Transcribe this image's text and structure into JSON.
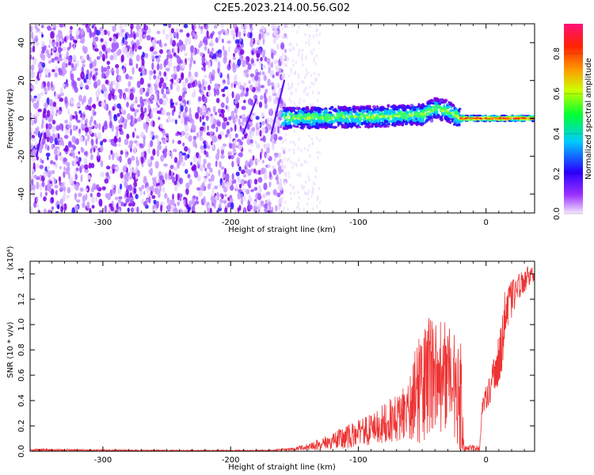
{
  "title": "C2E5.2023.214.00.56.G02",
  "colors": {
    "spectrogram_low": "#7a00e6",
    "spectrogram_mid": "#00e5ff",
    "spectrogram_high": "#ff3300",
    "snr_line": "#ee3333"
  },
  "chart_data": [
    {
      "type": "heatmap",
      "name": "spectrogram",
      "xlabel": "Height of straight line (km)",
      "ylabel": "Frequency (Hz)",
      "xlim": [
        -357,
        38
      ],
      "ylim": [
        -50,
        50
      ],
      "xticks": [
        -300,
        -200,
        -100,
        0
      ],
      "xtick_labels": [
        "-300",
        "-200",
        "-100",
        "0"
      ],
      "yticks": [
        -40,
        -20,
        0,
        20,
        40
      ],
      "ytick_labels": [
        "-40",
        "-20",
        "0",
        "20",
        "40"
      ],
      "colorbar": {
        "label": "Normalized spectral amplitude",
        "range": [
          0,
          0.95
        ],
        "ticks": [
          0.0,
          0.2,
          0.4,
          0.6,
          0.8
        ],
        "tick_labels": [
          "0.0",
          "0.2",
          "0.4",
          "0.6",
          "0.8"
        ]
      },
      "regions": [
        {
          "x": [
            -357,
            -160
          ],
          "freq_band": [
            -50,
            50
          ],
          "amplitude": 0.15,
          "description": "broadband noise"
        },
        {
          "x": [
            -160,
            -20
          ],
          "freq_band": [
            -4,
            5
          ],
          "amplitude": 0.4
        },
        {
          "x": [
            -20,
            38
          ],
          "freq_band": [
            -1,
            1
          ],
          "amplitude": 0.9
        }
      ],
      "ridge_frequency": [
        {
          "x": -160,
          "y": 0
        },
        {
          "x": -120,
          "y": 0.5
        },
        {
          "x": -80,
          "y": 1
        },
        {
          "x": -50,
          "y": 2
        },
        {
          "x": -40,
          "y": 5
        },
        {
          "x": -30,
          "y": 4
        },
        {
          "x": -20,
          "y": 0
        },
        {
          "x": 0,
          "y": 0
        },
        {
          "x": 38,
          "y": 0
        }
      ],
      "grid": false
    },
    {
      "type": "line",
      "name": "snr",
      "xlabel": "Height of straight line (km)",
      "ylabel": "SNR (10 * v/v)",
      "yscale_label": "(x10⁴)",
      "xlim": [
        -357,
        38
      ],
      "ylim": [
        0,
        1.5
      ],
      "xticks": [
        -300,
        -200,
        -100,
        0
      ],
      "xtick_labels": [
        "-300",
        "-200",
        "-100",
        "0"
      ],
      "yticks": [
        0,
        0.2,
        0.4,
        0.6,
        0.8,
        1.0,
        1.2,
        1.4
      ],
      "ytick_labels": [
        "0.0",
        "0.2",
        "0.4",
        "0.6",
        "0.8",
        "1.0",
        "1.2",
        "1.4"
      ],
      "envelope": [
        {
          "x": -357,
          "lo": 0.0,
          "hi": 0.02
        },
        {
          "x": -250,
          "lo": 0.0,
          "hi": 0.01
        },
        {
          "x": -170,
          "lo": 0.0,
          "hi": 0.01
        },
        {
          "x": -150,
          "lo": 0.005,
          "hi": 0.03
        },
        {
          "x": -130,
          "lo": 0.01,
          "hi": 0.1
        },
        {
          "x": -110,
          "lo": 0.02,
          "hi": 0.2
        },
        {
          "x": -90,
          "lo": 0.05,
          "hi": 0.3
        },
        {
          "x": -70,
          "lo": 0.08,
          "hi": 0.45
        },
        {
          "x": -60,
          "lo": 0.1,
          "hi": 0.6
        },
        {
          "x": -50,
          "lo": 0.05,
          "hi": 1.05
        },
        {
          "x": -40,
          "lo": 0.1,
          "hi": 1.1
        },
        {
          "x": -30,
          "lo": 0.2,
          "hi": 1.0
        },
        {
          "x": -20,
          "lo": 0.0,
          "hi": 0.9
        },
        {
          "x": -17,
          "lo": 0.0,
          "hi": 0.05
        },
        {
          "x": -5,
          "lo": 0.0,
          "hi": 0.05
        },
        {
          "x": -3,
          "lo": 0.3,
          "hi": 0.4
        },
        {
          "x": 5,
          "lo": 0.4,
          "hi": 0.7
        },
        {
          "x": 12,
          "lo": 0.6,
          "hi": 1.0
        },
        {
          "x": 15,
          "lo": 0.9,
          "hi": 1.3
        },
        {
          "x": 25,
          "lo": 1.2,
          "hi": 1.4
        },
        {
          "x": 38,
          "lo": 1.35,
          "hi": 1.5
        }
      ],
      "grid": false
    }
  ]
}
